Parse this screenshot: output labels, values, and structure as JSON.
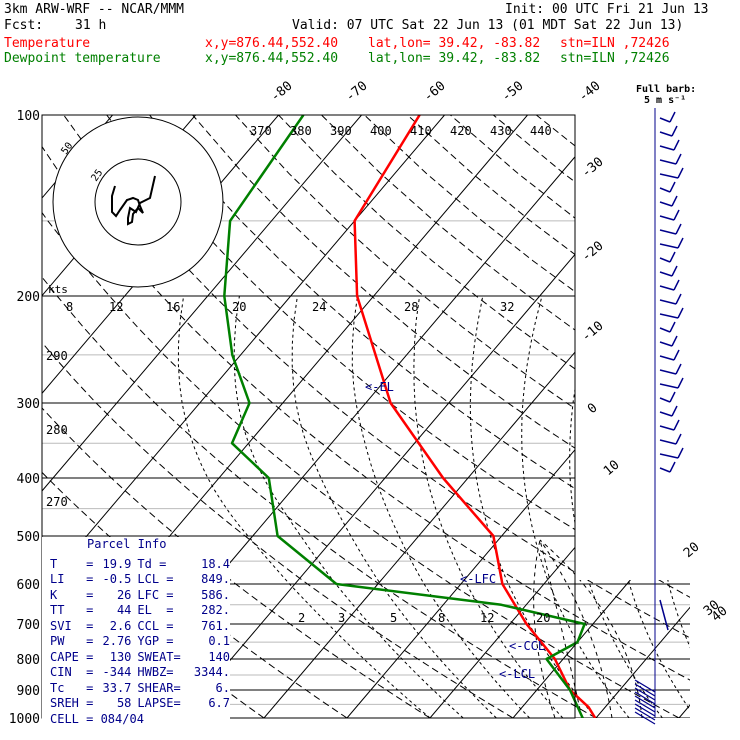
{
  "header": {
    "model": "3km ARW-WRF -- NCAR/MMM",
    "init": "Init: 00 UTC Fri 21 Jun 13",
    "fcst_label": "Fcst:",
    "fcst_hours": "31 h",
    "valid": "Valid: 07 UTC Sat 22 Jun 13 (01 MDT Sat 22 Jun 13)",
    "temp_label": "Temperature",
    "dew_label": "Dewpoint temperature",
    "xy": "x,y=876.44,552.40",
    "latlon": "lat,lon= 39.42, -83.82",
    "stn": "stn=ILN ,72426",
    "barb_title": "Full barb:",
    "barb_units": "5 m s⁻¹",
    "colors": {
      "temperature": "#ff0000",
      "dewpoint": "#008000",
      "accent": "#00008b"
    }
  },
  "chart_data": {
    "type": "line",
    "pressure_levels": [
      100,
      200,
      300,
      400,
      500,
      600,
      700,
      800,
      900,
      1000
    ],
    "series": [
      {
        "name": "Temperature",
        "points": [
          [
            100,
            -63
          ],
          [
            150,
            -60
          ],
          [
            200,
            -52
          ],
          [
            300,
            -37
          ],
          [
            400,
            -23
          ],
          [
            500,
            -11
          ],
          [
            600,
            -5
          ],
          [
            700,
            2
          ],
          [
            800,
            9
          ],
          [
            900,
            14
          ],
          [
            960,
            18
          ],
          [
            1000,
            19.9
          ]
        ]
      },
      {
        "name": "Dewpoint temperature",
        "points": [
          [
            100,
            -77
          ],
          [
            150,
            -75
          ],
          [
            200,
            -68
          ],
          [
            250,
            -61
          ],
          [
            300,
            -54
          ],
          [
            350,
            -52
          ],
          [
            400,
            -44
          ],
          [
            500,
            -37
          ],
          [
            600,
            -25
          ],
          [
            650,
            -3
          ],
          [
            700,
            9
          ],
          [
            750,
            10
          ],
          [
            800,
            8
          ],
          [
            900,
            14
          ],
          [
            1000,
            18.4
          ]
        ]
      }
    ],
    "isotherm_labels": [
      "-80",
      "-70",
      "-60",
      "-50",
      "-40",
      "-30",
      "-20",
      "-10",
      "0",
      "10",
      "20",
      "30",
      "40"
    ],
    "theta_labels": [
      "370",
      "380",
      "390",
      "400",
      "410",
      "420",
      "430",
      "440"
    ],
    "hodo_kts_label": "kts",
    "hodo_speed_labels": [
      "8",
      "12",
      "16",
      "20",
      "24",
      "28",
      "32"
    ],
    "dry_adiabat_labels": [
      "290",
      "280",
      "270"
    ],
    "mixing_ratio_labels": [
      "2",
      "3",
      "5",
      "8",
      "12",
      "20"
    ],
    "level_markers": {
      "el": "<-EL",
      "lfc": "<-LFC",
      "ccl": "<-CCL",
      "lcl": "<-LCL"
    },
    "hodograph_ring_labels": [
      "25",
      "50"
    ],
    "grid": true
  },
  "parcel": {
    "title": "Parcel Info",
    "rows": [
      {
        "k1": "T    =",
        "v1": "19.9",
        "k2": "Td =",
        "v2": "18.4"
      },
      {
        "k1": "LI   =",
        "v1": "-0.5",
        "k2": "LCL =",
        "v2": "849."
      },
      {
        "k1": "K    =",
        "v1": "26",
        "k2": "LFC =",
        "v2": "586."
      },
      {
        "k1": "TT   =",
        "v1": "44",
        "k2": "EL  =",
        "v2": "282."
      },
      {
        "k1": "SVI  =",
        "v1": "2.6",
        "k2": "CCL =",
        "v2": "761."
      },
      {
        "k1": "PW   =",
        "v1": "2.76",
        "k2": "YGP =",
        "v2": "0.1"
      },
      {
        "k1": "CAPE =",
        "v1": "130",
        "k2": "SWEAT=",
        "v2": "140"
      },
      {
        "k1": "CIN  =",
        "v1": "-344",
        "k2": "HWBZ=",
        "v2": "3344."
      },
      {
        "k1": "Tc   =",
        "v1": "33.7",
        "k2": "SHEAR=",
        "v2": "6."
      },
      {
        "k1": "SREH =",
        "v1": "58",
        "k2": "LAPSE=",
        "v2": "6.7"
      }
    ],
    "cell": "CELL = 084/04"
  }
}
